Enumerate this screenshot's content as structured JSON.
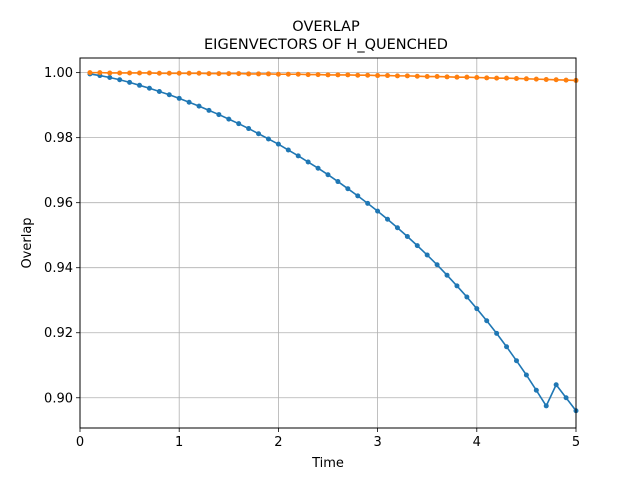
{
  "chart_data": {
    "type": "line",
    "title": "OVERLAP",
    "subtitle": "EIGENVECTORS OF H_QUENCHED",
    "xlabel": "Time",
    "ylabel": "Overlap",
    "xlim": [
      0,
      5
    ],
    "ylim": [
      0.8907,
      1.0045
    ],
    "xticks": [
      0,
      1,
      2,
      3,
      4,
      5
    ],
    "xtick_labels": [
      "0",
      "1",
      "2",
      "3",
      "4",
      "5"
    ],
    "yticks": [
      0.9,
      0.92,
      0.94,
      0.96,
      0.98,
      1.0
    ],
    "ytick_labels": [
      "0.90",
      "0.92",
      "0.94",
      "0.96",
      "0.98",
      "1.00"
    ],
    "grid": true,
    "legend": "none",
    "x": [
      0.1,
      0.2,
      0.3,
      0.4,
      0.5,
      0.6,
      0.7,
      0.8,
      0.9,
      1.0,
      1.1,
      1.2,
      1.3,
      1.4,
      1.5,
      1.6,
      1.7,
      1.8,
      1.9,
      2.0,
      2.1,
      2.2,
      2.3,
      2.4,
      2.5,
      2.6,
      2.7,
      2.8,
      2.9,
      3.0,
      3.1,
      3.2,
      3.3,
      3.4,
      3.5,
      3.6,
      3.7,
      3.8,
      3.9,
      4.0,
      4.1,
      4.2,
      4.3,
      4.4,
      4.5,
      4.6,
      4.7,
      4.8,
      4.9,
      5.0
    ],
    "series": [
      {
        "color": "#1f77b4",
        "values": [
          0.9996,
          0.9991,
          0.9985,
          0.9978,
          0.997,
          0.9961,
          0.9952,
          0.9942,
          0.9932,
          0.9921,
          0.9909,
          0.9897,
          0.9884,
          0.9871,
          0.9857,
          0.9843,
          0.9828,
          0.9812,
          0.9796,
          0.978,
          0.9762,
          0.9744,
          0.9725,
          0.9706,
          0.9686,
          0.9665,
          0.9643,
          0.9621,
          0.9598,
          0.9574,
          0.9549,
          0.9523,
          0.9496,
          0.9468,
          0.9439,
          0.9409,
          0.9377,
          0.9344,
          0.931,
          0.9274,
          0.9237,
          0.9198,
          0.9157,
          0.9114,
          0.907,
          0.9023,
          0.8975,
          0.904,
          0.9,
          0.896
        ]
      },
      {
        "color": "#ff7f0e",
        "values": [
          1.0,
          1.0,
          0.9999,
          0.9999,
          0.9999,
          0.9999,
          0.9999,
          0.9998,
          0.9998,
          0.9998,
          0.9998,
          0.9998,
          0.9997,
          0.9997,
          0.9997,
          0.9997,
          0.9996,
          0.9996,
          0.9996,
          0.9995,
          0.9995,
          0.9995,
          0.9994,
          0.9994,
          0.9993,
          0.9993,
          0.9993,
          0.9992,
          0.9992,
          0.9991,
          0.9991,
          0.999,
          0.999,
          0.9989,
          0.9988,
          0.9988,
          0.9987,
          0.9986,
          0.9986,
          0.9985,
          0.9984,
          0.9983,
          0.9983,
          0.9982,
          0.9981,
          0.998,
          0.9979,
          0.9978,
          0.9977,
          0.9976
        ]
      }
    ]
  }
}
